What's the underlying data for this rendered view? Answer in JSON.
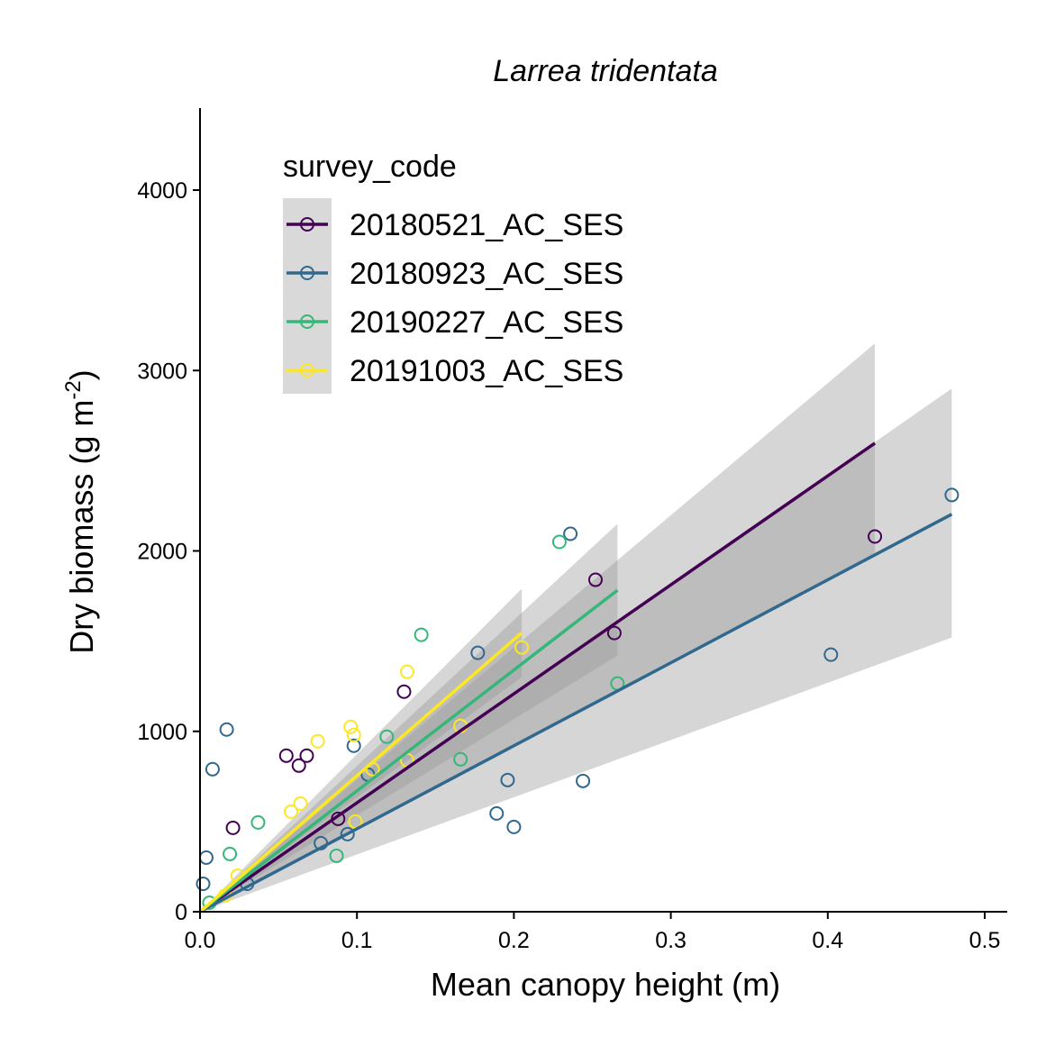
{
  "chart_data": {
    "type": "scatter",
    "title": "Larrea tridentata",
    "xlabel": "Mean canopy height (m)",
    "ylabel": "Dry biomass (g m",
    "ylabel_sup": "-2",
    "ylabel_tail": ")",
    "xlim": [
      0,
      0.515
    ],
    "ylim": [
      0,
      4450
    ],
    "x_ticks": [
      0.0,
      0.1,
      0.2,
      0.3,
      0.4,
      0.5
    ],
    "x_tick_labels": [
      "0.0",
      "0.1",
      "0.2",
      "0.3",
      "0.4",
      "0.5"
    ],
    "y_ticks": [
      0,
      1000,
      2000,
      3000,
      4000
    ],
    "y_tick_labels": [
      "0",
      "1000",
      "2000",
      "3000",
      "4000"
    ],
    "grid": false,
    "legend_position": "top-left",
    "legend_title": "survey_code",
    "series": [
      {
        "name": "20180521_AC_SES",
        "color": "#440154",
        "points": [
          [
            0.021,
            465
          ],
          [
            0.055,
            865
          ],
          [
            0.063,
            810
          ],
          [
            0.068,
            865
          ],
          [
            0.088,
            515
          ],
          [
            0.13,
            1220
          ],
          [
            0.252,
            1840
          ],
          [
            0.264,
            1545
          ],
          [
            0.43,
            2080
          ]
        ],
        "fit_slope": 6040,
        "fit_range": [
          0,
          0.43
        ],
        "ci_low_end": 1980,
        "ci_high_end": 3150
      },
      {
        "name": "20180923_AC_SES",
        "color": "#31688e",
        "points": [
          [
            0.002,
            155
          ],
          [
            0.004,
            300
          ],
          [
            0.008,
            790
          ],
          [
            0.017,
            1010
          ],
          [
            0.03,
            155
          ],
          [
            0.077,
            380
          ],
          [
            0.094,
            430
          ],
          [
            0.098,
            920
          ],
          [
            0.107,
            760
          ],
          [
            0.177,
            1435
          ],
          [
            0.189,
            545
          ],
          [
            0.196,
            730
          ],
          [
            0.2,
            470
          ],
          [
            0.236,
            2095
          ],
          [
            0.244,
            725
          ],
          [
            0.402,
            1425
          ],
          [
            0.479,
            2310
          ]
        ],
        "fit_slope": 4600,
        "fit_range": [
          0,
          0.479
        ],
        "ci_low_end": 1520,
        "ci_high_end": 2900
      },
      {
        "name": "20190227_AC_SES",
        "color": "#35b779",
        "points": [
          [
            0.006,
            50
          ],
          [
            0.019,
            320
          ],
          [
            0.037,
            495
          ],
          [
            0.087,
            310
          ],
          [
            0.119,
            970
          ],
          [
            0.141,
            1535
          ],
          [
            0.166,
            845
          ],
          [
            0.229,
            2050
          ],
          [
            0.266,
            1265
          ]
        ],
        "fit_slope": 6700,
        "fit_range": [
          0,
          0.266
        ],
        "ci_low_end": 1420,
        "ci_high_end": 2150
      },
      {
        "name": "20191003_AC_SES",
        "color": "#fde725",
        "points": [
          [
            0.016,
            90
          ],
          [
            0.024,
            200
          ],
          [
            0.058,
            555
          ],
          [
            0.064,
            600
          ],
          [
            0.075,
            945
          ],
          [
            0.096,
            1025
          ],
          [
            0.098,
            980
          ],
          [
            0.099,
            500
          ],
          [
            0.11,
            790
          ],
          [
            0.132,
            840
          ],
          [
            0.132,
            1330
          ],
          [
            0.166,
            1030
          ],
          [
            0.205,
            1465
          ]
        ],
        "fit_slope": 7540,
        "fit_range": [
          0,
          0.205
        ],
        "ci_low_end": 1300,
        "ci_high_end": 1790
      }
    ]
  }
}
